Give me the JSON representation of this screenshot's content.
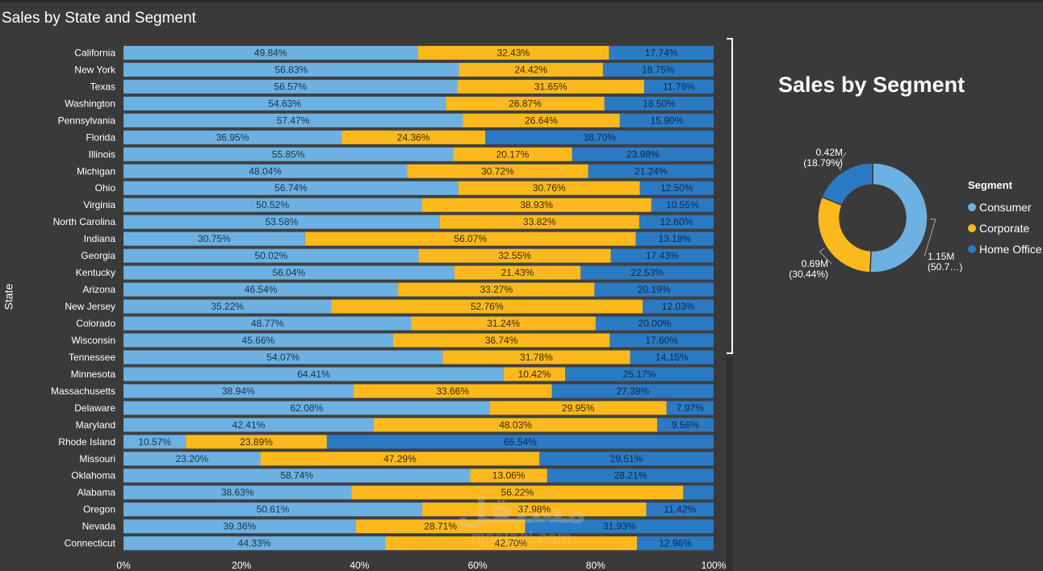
{
  "bar_title": "Sales by State and Segment",
  "y_axis_title": "State",
  "donut_title": "Sales by Segment",
  "legend_title": "Segment",
  "watermark": {
    "arabic": "مستقل",
    "latin": "mostaql.com"
  },
  "colors": {
    "Consumer": "#6cb1e2",
    "Corporate": "#fbb91d",
    "Home Office": "#2b7ac4"
  },
  "chart_data": [
    {
      "type": "bar",
      "orientation": "horizontal",
      "stacked": "100%",
      "title": "Sales by State and Segment",
      "ylabel": "State",
      "xlim": [
        0,
        100
      ],
      "x_ticks": [
        "0%",
        "20%",
        "40%",
        "60%",
        "80%",
        "100%"
      ],
      "categories": [
        "California",
        "New York",
        "Texas",
        "Washington",
        "Pennsylvania",
        "Florida",
        "Illinois",
        "Michigan",
        "Ohio",
        "Virginia",
        "North Carolina",
        "Indiana",
        "Georgia",
        "Kentucky",
        "Arizona",
        "New Jersey",
        "Colorado",
        "Wisconsin",
        "Tennessee",
        "Minnesota",
        "Massachusetts",
        "Delaware",
        "Maryland",
        "Rhode Island",
        "Missouri",
        "Oklahoma",
        "Alabama",
        "Oregon",
        "Nevada",
        "Connecticut"
      ],
      "series": [
        {
          "name": "Consumer",
          "values": [
            49.84,
            56.83,
            56.57,
            54.63,
            57.47,
            36.95,
            55.85,
            48.04,
            56.74,
            50.52,
            53.58,
            30.75,
            50.02,
            56.04,
            46.54,
            35.22,
            48.77,
            45.66,
            54.07,
            64.41,
            38.94,
            62.08,
            42.41,
            10.57,
            23.2,
            58.74,
            38.63,
            50.61,
            39.36,
            44.33
          ]
        },
        {
          "name": "Corporate",
          "values": [
            32.43,
            24.42,
            31.65,
            26.87,
            26.64,
            24.36,
            20.17,
            30.72,
            30.76,
            38.93,
            33.82,
            56.07,
            32.55,
            21.43,
            33.27,
            52.76,
            31.24,
            36.74,
            31.78,
            10.42,
            33.66,
            29.95,
            48.03,
            23.89,
            47.29,
            13.06,
            56.22,
            37.98,
            28.71,
            42.7
          ]
        },
        {
          "name": "Home Office",
          "values": [
            17.74,
            18.75,
            11.78,
            18.5,
            15.9,
            38.7,
            23.98,
            21.24,
            12.5,
            10.55,
            12.6,
            13.18,
            17.43,
            22.53,
            20.19,
            12.03,
            20.0,
            17.6,
            14.15,
            25.17,
            27.39,
            7.97,
            9.56,
            65.54,
            29.51,
            28.21,
            5.15,
            11.42,
            31.93,
            12.96
          ]
        }
      ],
      "labels": [
        [
          "49.84%",
          "56.83%",
          "56.57%",
          "54.63%",
          "57.47%",
          "36.95%",
          "55.85%",
          "48.04%",
          "56.74%",
          "50.52%",
          "53.58%",
          "30.75%",
          "50.02%",
          "56.04%",
          "46.54%",
          "35.22%",
          "48.77%",
          "45.66%",
          "54.07%",
          "64.41%",
          "38.94%",
          "62.08%",
          "42.41%",
          "10.57%",
          "23.20%",
          "58.74%",
          "38.63%",
          "50.61%",
          "39.36%",
          "44.33%"
        ],
        [
          "32.43%",
          "24.42%",
          "31.65%",
          "26.87%",
          "26.64%",
          "24.36%",
          "20.17%",
          "30.72%",
          "30.76%",
          "38.93%",
          "33.82%",
          "56.07%",
          "32.55%",
          "21.43%",
          "33.27%",
          "52.76%",
          "31.24%",
          "36.74%",
          "31.78%",
          "10.42%",
          "33.66%",
          "29.95%",
          "48.03%",
          "23.89%",
          "47.29%",
          "13.06%",
          "56.22%",
          "37.98%",
          "28.71%",
          "42.70%"
        ],
        [
          "17.74%",
          "18.75%",
          "11.78%",
          "18.50%",
          "15.90%",
          "38.70%",
          "23.98%",
          "21.24%",
          "12.50%",
          "10.55%",
          "12.60%",
          "13.18%",
          "17.43%",
          "22.53%",
          "20.19%",
          "12.03%",
          "20.00%",
          "17.60%",
          "14.15%",
          "25.17%",
          "27.39%",
          "7.97%",
          "9.56%",
          "65.54%",
          "29.51%",
          "28.21%",
          "",
          "11.42%",
          "31.93%",
          "12.96%"
        ]
      ]
    },
    {
      "type": "pie",
      "variant": "donut",
      "title": "Sales by Segment",
      "legend_title": "Segment",
      "legend_position": "right",
      "categories": [
        "Consumer",
        "Corporate",
        "Home Office"
      ],
      "values": [
        50.77,
        30.44,
        18.79
      ],
      "labels": [
        {
          "value": "1.15M",
          "pct": "(50.7…)"
        },
        {
          "value": "0.69M",
          "pct": "(30.44%)"
        },
        {
          "value": "0.42M",
          "pct": "(18.79%)"
        }
      ]
    }
  ]
}
